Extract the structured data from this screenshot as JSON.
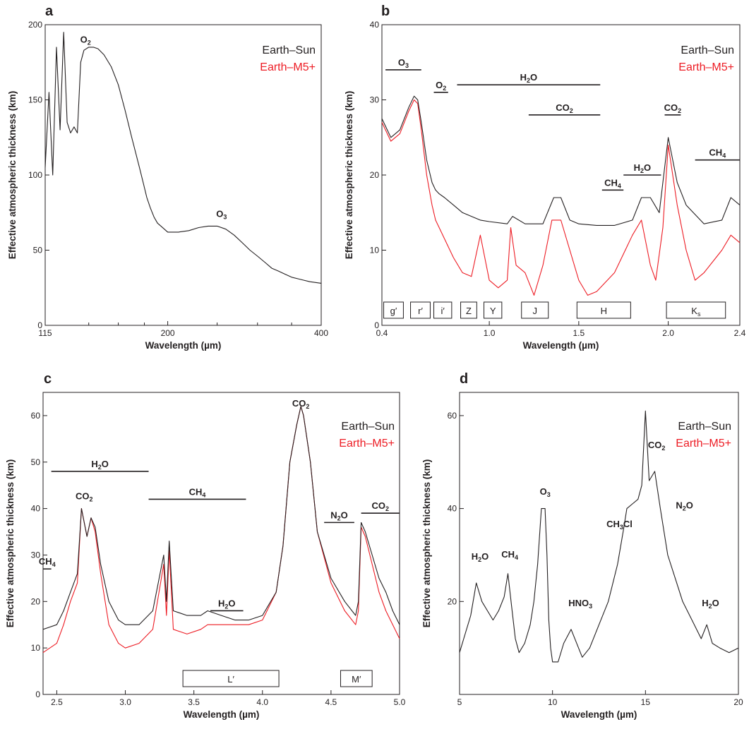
{
  "colors": {
    "earth_sun": "#231f20",
    "earth_m5": "#ed1c24"
  },
  "chart_data": [
    {
      "panel": "a",
      "type": "line",
      "xlabel": "Wavelength (µm)",
      "ylabel": "Effective atmospheric thickness (km)",
      "xlim": [
        115,
        400
      ],
      "ylim": [
        0,
        200
      ],
      "x_ticks": [
        115,
        200,
        400
      ],
      "x_minor_ticks": [
        140,
        160,
        180,
        250,
        300,
        350
      ],
      "y_ticks": [
        0,
        50,
        100,
        150,
        200
      ],
      "legend": [
        {
          "label": "Earth–Sun",
          "color": "#231f20"
        },
        {
          "label": "Earth–M5+",
          "color": "#ed1c24"
        }
      ],
      "annotations": [
        {
          "base": "O",
          "sub": "2",
          "x": 138,
          "y": 188
        },
        {
          "base": "O",
          "sub": "3",
          "x": 255,
          "y": 72
        }
      ],
      "series": [
        {
          "name": "Earth–Sun",
          "x": [
            115,
            117,
            119,
            121,
            123,
            125,
            127,
            129,
            131,
            133,
            135,
            137,
            140,
            143,
            146,
            150,
            155,
            160,
            165,
            170,
            173,
            176,
            179,
            182,
            185,
            188,
            191,
            194,
            197,
            200,
            205,
            210,
            220,
            230,
            240,
            250,
            260,
            270,
            280,
            290,
            300,
            310,
            320,
            330,
            340,
            350,
            360,
            370,
            380,
            390,
            400
          ],
          "y": [
            105,
            155,
            100,
            185,
            130,
            195,
            135,
            128,
            132,
            128,
            175,
            183,
            185,
            185,
            184,
            180,
            172,
            160,
            143,
            125,
            115,
            105,
            95,
            85,
            78,
            72,
            68,
            66,
            64,
            62,
            62,
            62,
            63,
            65,
            66,
            66,
            64,
            60,
            55,
            50,
            46,
            42,
            38,
            36,
            34,
            32,
            31,
            30,
            29,
            28.5,
            28
          ]
        }
      ]
    },
    {
      "panel": "b",
      "type": "line",
      "xlabel": "Wavelength (µm)",
      "ylabel": "Effective atmospheric thickness (km)",
      "xlim": [
        0.4,
        2.4
      ],
      "ylim": [
        0,
        40
      ],
      "x_ticks": [
        0.4,
        1.0,
        1.5,
        2.0,
        2.4
      ],
      "y_ticks": [
        0,
        10,
        20,
        30,
        40
      ],
      "legend": [
        {
          "label": "Earth–Sun",
          "color": "#231f20"
        },
        {
          "label": "Earth–M5+",
          "color": "#ed1c24"
        }
      ],
      "molecule_bands": [
        {
          "base": "O",
          "sub": "3",
          "x0": 0.42,
          "x1": 0.62,
          "y": 34
        },
        {
          "base": "O",
          "sub": "2",
          "x0": 0.69,
          "x1": 0.77,
          "y": 31
        },
        {
          "base": "H",
          "sub": "2",
          "tail": "O",
          "x0": 0.82,
          "x1": 1.62,
          "y": 32
        },
        {
          "base": "CO",
          "sub": "2",
          "x0": 1.22,
          "x1": 1.62,
          "y": 28
        },
        {
          "base": "CO",
          "sub": "2",
          "x0": 1.98,
          "x1": 2.07,
          "y": 28
        },
        {
          "base": "CH",
          "sub": "4",
          "x0": 1.63,
          "x1": 1.75,
          "y": 18
        },
        {
          "base": "H",
          "sub": "2",
          "tail": "O",
          "x0": 1.75,
          "x1": 1.96,
          "y": 20
        },
        {
          "base": "CH",
          "sub": "4",
          "x0": 2.15,
          "x1": 2.4,
          "y": 22
        }
      ],
      "filter_bands": [
        {
          "label": "g′",
          "x0": 0.41,
          "x1": 0.52
        },
        {
          "label": "r′",
          "x0": 0.56,
          "x1": 0.67
        },
        {
          "label": "i′",
          "x0": 0.69,
          "x1": 0.79
        },
        {
          "label": "Z",
          "x0": 0.84,
          "x1": 0.93
        },
        {
          "label": "Y",
          "x0": 0.97,
          "x1": 1.07
        },
        {
          "label": "J",
          "x0": 1.18,
          "x1": 1.33
        },
        {
          "label": "H",
          "x0": 1.49,
          "x1": 1.79
        },
        {
          "label": "K",
          "label_sub": "s",
          "x0": 1.99,
          "x1": 2.32
        }
      ],
      "series": [
        {
          "name": "Earth–Sun",
          "x": [
            0.4,
            0.45,
            0.5,
            0.55,
            0.58,
            0.6,
            0.62,
            0.65,
            0.68,
            0.7,
            0.72,
            0.75,
            0.8,
            0.85,
            0.9,
            0.95,
            1.0,
            1.1,
            1.13,
            1.2,
            1.3,
            1.36,
            1.4,
            1.45,
            1.5,
            1.6,
            1.7,
            1.8,
            1.85,
            1.9,
            1.95,
            2.0,
            2.05,
            2.1,
            2.2,
            2.3,
            2.35,
            2.4
          ],
          "y": [
            27.5,
            25,
            26,
            29,
            30.5,
            30,
            27,
            22,
            19,
            18,
            17.5,
            17,
            16,
            15,
            14.5,
            14,
            13.8,
            13.5,
            14.5,
            13.5,
            13.5,
            17,
            17,
            14,
            13.5,
            13.3,
            13.3,
            14,
            17,
            17,
            15,
            25,
            19,
            16,
            13.5,
            14,
            17,
            16
          ]
        },
        {
          "name": "Earth–M5+",
          "x": [
            0.4,
            0.45,
            0.5,
            0.55,
            0.58,
            0.6,
            0.62,
            0.65,
            0.68,
            0.7,
            0.72,
            0.75,
            0.8,
            0.85,
            0.9,
            0.95,
            1.0,
            1.05,
            1.1,
            1.12,
            1.15,
            1.2,
            1.25,
            1.3,
            1.35,
            1.4,
            1.45,
            1.5,
            1.55,
            1.6,
            1.7,
            1.8,
            1.85,
            1.9,
            1.93,
            1.97,
            2.0,
            2.05,
            2.1,
            2.15,
            2.2,
            2.3,
            2.35,
            2.4
          ],
          "y": [
            27,
            24.5,
            25.5,
            28.5,
            30,
            29.5,
            26,
            20,
            16,
            14,
            13,
            11.5,
            9,
            7,
            6.5,
            12,
            6,
            5,
            6,
            13,
            8,
            7,
            4,
            8,
            14,
            14,
            10,
            6,
            4,
            4.5,
            7,
            12,
            14,
            8,
            6,
            13,
            24,
            16,
            10,
            6,
            7,
            10,
            12,
            11
          ]
        }
      ]
    },
    {
      "panel": "c",
      "type": "line",
      "xlabel": "Wavelength (µm)",
      "ylabel": "Effective atmospheric thickness (km)",
      "xlim": [
        2.4,
        5.0
      ],
      "ylim": [
        0,
        65
      ],
      "x_ticks": [
        2.5,
        3.0,
        3.5,
        4.0,
        4.5,
        5.0
      ],
      "y_ticks": [
        0,
        10,
        20,
        30,
        40,
        50,
        60
      ],
      "legend": [
        {
          "label": "Earth–Sun",
          "color": "#231f20"
        },
        {
          "label": "Earth–M5+",
          "color": "#ed1c24"
        }
      ],
      "molecule_bands": [
        {
          "base": "H",
          "sub": "2",
          "tail": "O",
          "x0": 2.46,
          "x1": 3.17,
          "y": 48
        },
        {
          "base": "CO",
          "sub": "2",
          "x0": null,
          "x1": null,
          "x": 2.7,
          "y": 42
        },
        {
          "base": "CH",
          "sub": "4",
          "x0": 3.17,
          "x1": 3.88,
          "y": 42
        },
        {
          "base": "CH",
          "sub": "4",
          "x0": 2.4,
          "x1": 2.46,
          "y": 27
        },
        {
          "base": "H",
          "sub": "2",
          "tail": "O",
          "x0": 3.62,
          "x1": 3.86,
          "y": 18
        },
        {
          "base": "CO",
          "sub": "2",
          "x0": null,
          "x1": null,
          "x": 4.28,
          "y": 62
        },
        {
          "base": "N",
          "sub": "2",
          "tail": "O",
          "x0": 4.45,
          "x1": 4.67,
          "y": 37
        },
        {
          "base": "CO",
          "sub": "2",
          "x0": 4.72,
          "x1": 5.0,
          "y": 39
        }
      ],
      "filter_bands": [
        {
          "label": "L′",
          "x0": 3.42,
          "x1": 4.12
        },
        {
          "label": "M′",
          "x0": 4.57,
          "x1": 4.8
        }
      ],
      "series": [
        {
          "name": "Earth–Sun",
          "x": [
            2.4,
            2.5,
            2.55,
            2.6,
            2.65,
            2.68,
            2.72,
            2.75,
            2.78,
            2.82,
            2.88,
            2.95,
            3.0,
            3.1,
            3.2,
            3.28,
            3.3,
            3.32,
            3.35,
            3.45,
            3.55,
            3.6,
            3.7,
            3.8,
            3.9,
            4.0,
            4.1,
            4.15,
            4.2,
            4.25,
            4.28,
            4.3,
            4.35,
            4.4,
            4.5,
            4.6,
            4.68,
            4.7,
            4.72,
            4.75,
            4.8,
            4.85,
            4.9,
            4.95,
            5.0
          ],
          "y": [
            14,
            15,
            18,
            22,
            26,
            40,
            34,
            38,
            36,
            28,
            20,
            16,
            15,
            15,
            18,
            30,
            20,
            33,
            18,
            17,
            17,
            18,
            17,
            16,
            16,
            17,
            22,
            32,
            50,
            58,
            62,
            60,
            50,
            35,
            25,
            20,
            17,
            20,
            37,
            35,
            30,
            25,
            22,
            18,
            15
          ]
        },
        {
          "name": "Earth–M5+",
          "x": [
            2.4,
            2.5,
            2.55,
            2.6,
            2.65,
            2.68,
            2.72,
            2.75,
            2.78,
            2.82,
            2.88,
            2.95,
            3.0,
            3.1,
            3.2,
            3.28,
            3.3,
            3.32,
            3.35,
            3.45,
            3.55,
            3.6,
            3.7,
            3.8,
            3.9,
            4.0,
            4.1,
            4.15,
            4.2,
            4.25,
            4.28,
            4.3,
            4.35,
            4.4,
            4.5,
            4.6,
            4.68,
            4.7,
            4.72,
            4.75,
            4.8,
            4.85,
            4.9,
            4.95,
            5.0
          ],
          "y": [
            9,
            11,
            15,
            20,
            24,
            40,
            34,
            38,
            35,
            26,
            15,
            11,
            10,
            11,
            14,
            28,
            17,
            31,
            14,
            13,
            14,
            15,
            15,
            15,
            15,
            16,
            22,
            32,
            50,
            58,
            62,
            60,
            50,
            35,
            24,
            18,
            15,
            18,
            36,
            34,
            28,
            22,
            18,
            15,
            12
          ]
        }
      ]
    },
    {
      "panel": "d",
      "type": "line",
      "xlabel": "Wavelength (µm)",
      "ylabel": "Effective atmospheric thickness (km)",
      "xlim": [
        5,
        20
      ],
      "ylim": [
        0,
        65
      ],
      "x_ticks": [
        5,
        10,
        15,
        20
      ],
      "y_ticks": [
        20,
        40,
        60
      ],
      "legend": [
        {
          "label": "Earth–Sun",
          "color": "#231f20"
        },
        {
          "label": "Earth–M5+",
          "color": "#ed1c24"
        }
      ],
      "annotations": [
        {
          "base": "H",
          "sub": "2",
          "tail": "O",
          "x": 6.1,
          "y": 29
        },
        {
          "base": "CH",
          "sub": "4",
          "x": 7.7,
          "y": 29.5
        },
        {
          "base": "O",
          "sub": "3",
          "x": 9.6,
          "y": 43
        },
        {
          "base": "HNO",
          "sub": "3",
          "x": 11.5,
          "y": 19
        },
        {
          "base": "CH",
          "sub": "3",
          "tail": "Cl",
          "x": 13.6,
          "y": 36
        },
        {
          "base": "CO",
          "sub": "2",
          "x": 15.6,
          "y": 53
        },
        {
          "base": "N",
          "sub": "2",
          "tail": "O",
          "x": 17.1,
          "y": 40
        },
        {
          "base": "H",
          "sub": "2",
          "tail": "O",
          "x": 18.5,
          "y": 19
        }
      ],
      "series": [
        {
          "name": "Earth–Sun",
          "x": [
            5,
            5.3,
            5.6,
            5.9,
            6.2,
            6.5,
            6.8,
            7.1,
            7.4,
            7.6,
            7.8,
            8.0,
            8.2,
            8.5,
            8.8,
            9.0,
            9.2,
            9.4,
            9.6,
            9.7,
            9.8,
            9.9,
            10.0,
            10.3,
            10.6,
            11.0,
            11.3,
            11.6,
            12.0,
            12.5,
            13.0,
            13.5,
            13.8,
            14.0,
            14.3,
            14.6,
            14.8,
            15.0,
            15.2,
            15.5,
            15.8,
            16.2,
            16.6,
            17.0,
            17.5,
            18.0,
            18.3,
            18.6,
            19.0,
            19.5,
            20.0
          ],
          "y": [
            9,
            13,
            17,
            24,
            20,
            18,
            16,
            18,
            21,
            26,
            19,
            12,
            9,
            11,
            15,
            20,
            28,
            40,
            40,
            30,
            16,
            10,
            7,
            7,
            11,
            14,
            11,
            8,
            10,
            15,
            20,
            28,
            35,
            40,
            41,
            42,
            45,
            61,
            46,
            48,
            40,
            30,
            25,
            20,
            16,
            12,
            15,
            11,
            10,
            9,
            10
          ]
        }
      ]
    }
  ],
  "panels": {
    "a": {
      "letter": "a"
    },
    "b": {
      "letter": "b"
    },
    "c": {
      "letter": "c"
    },
    "d": {
      "letter": "d"
    }
  }
}
